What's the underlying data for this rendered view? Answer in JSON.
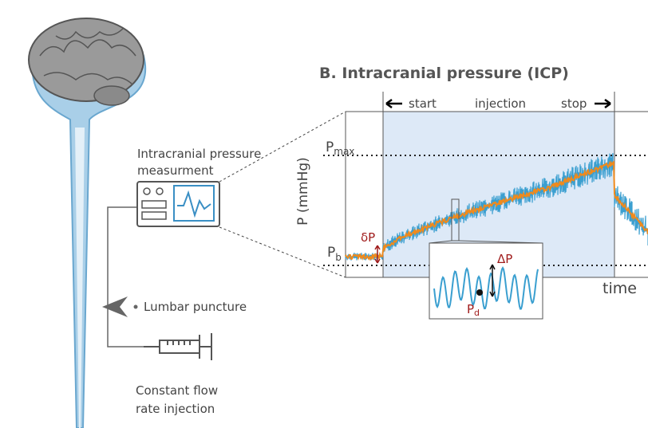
{
  "title": "B. Intracranial pressure (ICP)",
  "phases": {
    "start": "start",
    "injection": "injection",
    "stop": "stop"
  },
  "axes": {
    "y": "P (mmHg)",
    "x": "time"
  },
  "levels": {
    "pmax": {
      "main": "P",
      "sub": "max"
    },
    "pb": {
      "main": "P",
      "sub": "b"
    }
  },
  "annotations": {
    "small_delta": "δP",
    "big_delta": "ΔP",
    "pd": {
      "main": "P",
      "sub": "d"
    }
  },
  "left": {
    "measurement": [
      "Intracranial pressure",
      "measurment"
    ],
    "lumbar": "Lumbar puncture",
    "injection": [
      "Constant flow",
      "rate injection"
    ]
  }
}
